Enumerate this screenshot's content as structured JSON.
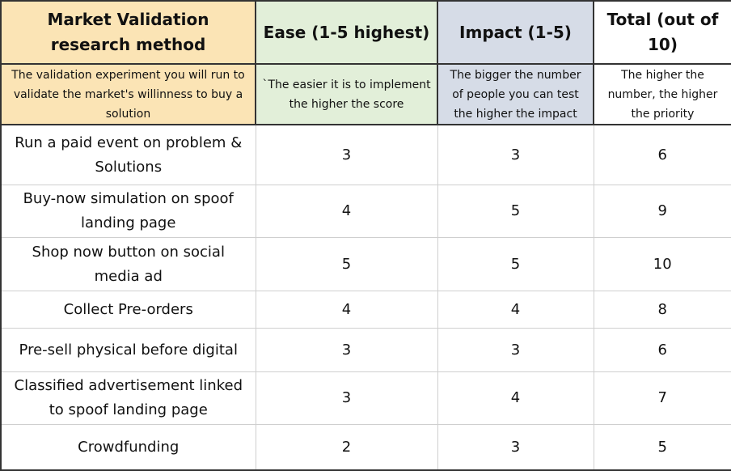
{
  "table": {
    "columns": [
      {
        "title": "Market Validation research method",
        "description": "The validation experiment you will run to validate the market's willinness to buy a solution"
      },
      {
        "title": "Ease (1-5 highest)",
        "description": "`The easier it is to implement the higher the score"
      },
      {
        "title": "Impact (1-5)",
        "description": "The bigger the number of people you can test the higher the impact"
      },
      {
        "title": "Total (out of 10)",
        "description": "The higher the number, the higher the priority"
      }
    ],
    "rows": [
      [
        "Run a paid event on problem & Solutions",
        3,
        3,
        6
      ],
      [
        "Buy-now simulation on spoof landing page",
        4,
        5,
        9
      ],
      [
        "Shop now button on social media ad",
        5,
        5,
        10
      ],
      [
        "Collect Pre-orders",
        4,
        4,
        8
      ],
      [
        "Pre-sell physical before digital",
        3,
        3,
        6
      ],
      [
        "Classified advertisement linked to spoof landing page",
        3,
        4,
        7
      ],
      [
        "Crowdfunding",
        2,
        3,
        5
      ]
    ]
  }
}
